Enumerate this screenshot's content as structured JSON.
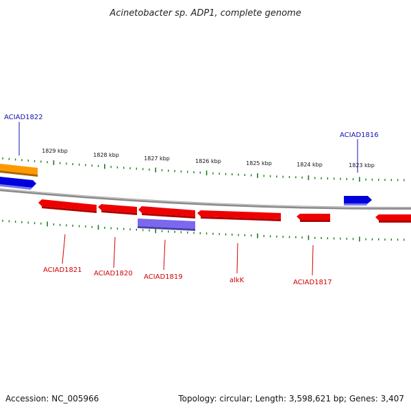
{
  "title": "Acinetobacter sp. ADP1, complete genome",
  "footer": {
    "accession": "Accession: NC_005966",
    "summary": "Topology: circular; Length: 3,598,621 bp; Genes: 3,407"
  },
  "colors": {
    "backbone": "#8a8a8a",
    "tick": "#1a7a1a",
    "forward_gene": "#0000dd",
    "reverse_gene": "#ee0000",
    "orange_feature": "#ff9900",
    "purple_feature": "#7b68ee",
    "forward_label": "#1010b0",
    "reverse_label": "#d00000"
  },
  "scale": {
    "ticks": [
      {
        "label": "1829 kbp"
      },
      {
        "label": "1828 kbp"
      },
      {
        "label": "1827 kbp"
      },
      {
        "label": "1826 kbp"
      },
      {
        "label": "1825 kbp"
      },
      {
        "label": "1824 kbp"
      },
      {
        "label": "1823 kbp"
      }
    ]
  },
  "genes": {
    "forward": [
      {
        "label": "ACIAD1822"
      },
      {
        "label": "ACIAD1816"
      }
    ],
    "reverse": [
      {
        "label": "ACIAD1821"
      },
      {
        "label": "ACIAD1820"
      },
      {
        "label": "ACIAD1819"
      },
      {
        "label": "alkK"
      },
      {
        "label": "ACIAD1817"
      }
    ]
  }
}
